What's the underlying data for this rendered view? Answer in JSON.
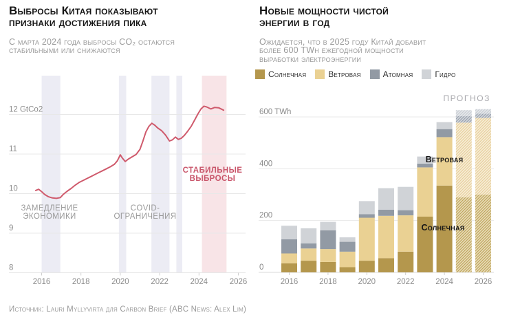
{
  "left_chart": {
    "title_lines": [
      "Выбросы Китая показывают",
      "признаки достижения пика"
    ],
    "subtitle_lines": [
      "С марта 2024 года выбросы CO₂ остаются",
      "стабильными или снижаются"
    ],
    "annotations": {
      "slowdown": "ЗАМЕДЛЕНИЕ ЭКОНОМИКИ",
      "covid": "COVID-ОГРАНИЧЕНИЯ",
      "stable": "СТАБИЛЬНЫЕ ВЫБРОСЫ"
    }
  },
  "right_chart": {
    "title_lines": [
      "Новые мощности чистой",
      "энергии в год"
    ],
    "subtitle_lines": [
      "Ожидается, что в 2025 году Китай добавит",
      "более 600 TWh ежегодной мощности",
      "выработки электроэнергии"
    ],
    "forecast_label": "ПРОГНОЗ",
    "bar_labels": {
      "wind": "Ветровая",
      "solar": "Солнечная"
    }
  },
  "footer": {
    "source": "Источник: Lauri Myllyvirta для Carbon Brief (ABC News: Alex Lim)"
  },
  "chart_data": [
    {
      "id": "china-co2-emissions",
      "type": "line",
      "title": "Выбросы Китая показывают признаки достижения пика",
      "subtitle": "С марта 2024 года выбросы CO₂ остаются стабильными или снижаются",
      "unit": "GtCo2",
      "line_color": "#cf5a6c",
      "xlim": [
        2015.5,
        2026.5
      ],
      "ylim": [
        8,
        12.5
      ],
      "xticks": [
        2016,
        2018,
        2020,
        2022,
        2024,
        2026
      ],
      "yticks": [
        {
          "v": 12,
          "label": "12 GtCo2"
        },
        {
          "v": 11,
          "label": "11"
        },
        {
          "v": 10,
          "label": "10"
        },
        {
          "v": 9,
          "label": "9"
        },
        {
          "v": 8,
          "label": "8"
        }
      ],
      "band_colors": {
        "event": "#ececf4",
        "highlight": "#f8e4e7"
      },
      "bands": [
        {
          "from": 2016.0,
          "to": 2016.95,
          "kind": "event"
        },
        {
          "from": 2019.93,
          "to": 2020.3,
          "kind": "event"
        },
        {
          "from": 2021.58,
          "to": 2022.5,
          "kind": "event"
        },
        {
          "from": 2022.85,
          "to": 2023.15,
          "kind": "event"
        },
        {
          "from": 2024.15,
          "to": 2025.4,
          "kind": "highlight"
        }
      ],
      "x": [
        2015.7,
        2015.85,
        2016.0,
        2016.15,
        2016.35,
        2016.55,
        2016.75,
        2016.95,
        2017.1,
        2017.3,
        2017.5,
        2017.7,
        2017.9,
        2018.1,
        2018.3,
        2018.5,
        2018.7,
        2018.9,
        2019.1,
        2019.3,
        2019.5,
        2019.7,
        2019.85,
        2020.0,
        2020.1,
        2020.25,
        2020.4,
        2020.6,
        2020.8,
        2021.0,
        2021.15,
        2021.3,
        2021.45,
        2021.6,
        2021.75,
        2021.9,
        2022.1,
        2022.3,
        2022.5,
        2022.65,
        2022.8,
        2022.95,
        2023.1,
        2023.25,
        2023.4,
        2023.6,
        2023.8,
        2023.95,
        2024.1,
        2024.25,
        2024.4,
        2024.6,
        2024.8,
        2025.0,
        2025.25
      ],
      "y": [
        10.08,
        10.11,
        10.05,
        9.98,
        9.92,
        9.89,
        9.88,
        9.9,
        9.98,
        10.06,
        10.13,
        10.21,
        10.28,
        10.33,
        10.38,
        10.43,
        10.48,
        10.53,
        10.58,
        10.63,
        10.68,
        10.74,
        10.83,
        10.98,
        10.9,
        10.81,
        10.87,
        10.93,
        10.99,
        11.12,
        11.33,
        11.56,
        11.7,
        11.78,
        11.73,
        11.66,
        11.59,
        11.48,
        11.33,
        11.36,
        11.43,
        11.37,
        11.4,
        11.47,
        11.56,
        11.7,
        11.88,
        12.02,
        12.14,
        12.21,
        12.19,
        12.14,
        12.18,
        12.17,
        12.11
      ]
    },
    {
      "id": "new-clean-energy-capacity",
      "type": "bar",
      "title": "Новые мощности чистой энергии в год",
      "subtitle": "Ожидается, что в 2025 году Китай добавит более 600 TWh ежегодной мощности выработки электроэнергии",
      "unit": "TWh",
      "stacked": true,
      "categories": [
        2016,
        2017,
        2018,
        2019,
        2020,
        2021,
        2022,
        2023,
        2024,
        2025,
        2026
      ],
      "forecast_years": [
        2025,
        2026
      ],
      "forecast_label": "ПРОГНОЗ",
      "xticks": [
        2016,
        2018,
        2020,
        2022,
        2024,
        2026
      ],
      "ylim": [
        0,
        650
      ],
      "yticks": [
        {
          "v": 0,
          "label": "0"
        },
        {
          "v": 200,
          "label": "200"
        },
        {
          "v": 400,
          "label": "400"
        },
        {
          "v": 600,
          "label": "600 TWh"
        }
      ],
      "series": [
        {
          "name": "Солнечная",
          "color": "#b4974d",
          "hatch": {
            "bg": "#eadfbc",
            "stripe": "#c0a55e"
          },
          "values": [
            35,
            45,
            40,
            20,
            45,
            55,
            80,
            215,
            335,
            290,
            300
          ]
        },
        {
          "name": "Ветровая",
          "color": "#ead193",
          "hatch": {
            "bg": "#f8efd9",
            "stripe": "#e7cf9d"
          },
          "values": [
            38,
            47,
            50,
            60,
            166,
            163,
            140,
            190,
            187,
            288,
            296
          ]
        },
        {
          "name": "Атомная",
          "color": "#929aa4",
          "hatch": {
            "bg": "#d5d9df",
            "stripe": "#9aa2ad"
          },
          "values": [
            55,
            20,
            72,
            38,
            14,
            24,
            20,
            15,
            31,
            25,
            16
          ]
        },
        {
          "name": "Гидро",
          "color": "#d0d3d7",
          "hatch": {
            "bg": "#e7e9ec",
            "stripe": "#c8cdd3"
          },
          "values": [
            52,
            58,
            33,
            17,
            50,
            83,
            90,
            27,
            27,
            23,
            18
          ]
        }
      ]
    }
  ]
}
